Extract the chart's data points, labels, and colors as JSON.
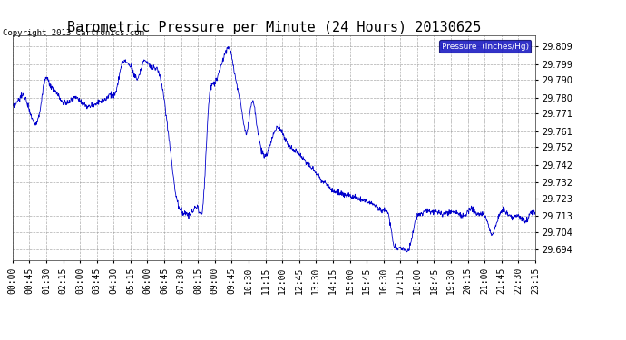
{
  "title": "Barometric Pressure per Minute (24 Hours) 20130625",
  "copyright": "Copyright 2013 Cartronics.com",
  "legend_label": "Pressure  (Inches/Hg)",
  "legend_bg": "#0000bb",
  "legend_text_color": "#ffffff",
  "line_color": "#0000cc",
  "bg_color": "#ffffff",
  "plot_bg_color": "#ffffff",
  "grid_color": "#999999",
  "yticks": [
    29.694,
    29.704,
    29.713,
    29.723,
    29.732,
    29.742,
    29.752,
    29.761,
    29.771,
    29.78,
    29.79,
    29.799,
    29.809
  ],
  "ylim": [
    29.688,
    29.815
  ],
  "xtick_labels": [
    "00:00",
    "00:45",
    "01:30",
    "02:15",
    "03:00",
    "03:45",
    "04:30",
    "05:15",
    "06:00",
    "06:45",
    "07:30",
    "08:15",
    "09:00",
    "09:45",
    "10:30",
    "11:15",
    "12:00",
    "12:45",
    "13:30",
    "14:15",
    "15:00",
    "15:45",
    "16:30",
    "17:15",
    "18:00",
    "18:45",
    "19:30",
    "20:15",
    "21:00",
    "21:45",
    "22:30",
    "23:15"
  ],
  "title_fontsize": 11,
  "axis_fontsize": 7,
  "copyright_fontsize": 6.5,
  "ctrl_t": [
    0,
    0.25,
    0.5,
    0.75,
    1.0,
    1.25,
    1.5,
    1.75,
    2.0,
    2.25,
    2.5,
    2.75,
    3.0,
    3.25,
    3.5,
    3.75,
    4.0,
    4.25,
    4.5,
    4.75,
    5.0,
    5.25,
    5.5,
    5.75,
    6.0,
    6.25,
    6.5,
    6.75,
    7.0,
    7.25,
    7.5,
    7.75,
    8.0,
    8.25,
    8.5,
    8.75,
    9.0,
    9.25,
    9.5,
    9.75,
    10.0,
    10.25,
    10.5,
    10.75,
    11.0,
    11.25,
    11.5,
    11.75,
    12.0,
    12.25,
    12.5,
    12.75,
    13.0,
    13.25,
    13.5,
    13.75,
    14.0,
    14.25,
    14.5,
    14.75,
    15.0,
    15.25,
    15.5,
    15.75,
    16.0,
    16.25,
    16.5,
    16.75,
    17.0,
    17.25,
    17.5,
    17.75,
    18.0,
    18.25,
    18.5,
    18.75,
    19.0,
    19.25,
    19.5,
    19.75,
    20.0,
    20.25,
    20.5,
    20.75,
    21.0,
    21.25,
    21.5,
    21.75,
    22.0,
    22.25,
    22.5,
    22.75,
    23.0,
    23.25,
    23.5,
    23.75,
    24.0
  ],
  "ctrl_p": [
    29.775,
    29.778,
    29.781,
    29.774,
    29.766,
    29.772,
    29.79,
    29.786,
    29.783,
    29.778,
    29.777,
    29.779,
    29.78,
    29.776,
    29.775,
    29.776,
    29.778,
    29.779,
    29.782,
    29.783,
    29.798,
    29.8,
    29.796,
    29.791,
    29.8,
    29.799,
    29.797,
    29.793,
    29.775,
    29.75,
    29.725,
    29.716,
    29.714,
    29.715,
    29.718,
    29.72,
    29.775,
    29.788,
    29.795,
    29.805,
    29.807,
    29.79,
    29.775,
    29.76,
    29.778,
    29.762,
    29.748,
    29.75,
    29.76,
    29.763,
    29.757,
    29.752,
    29.75,
    29.747,
    29.743,
    29.74,
    29.736,
    29.733,
    29.73,
    29.727,
    29.726,
    29.725,
    29.724,
    29.723,
    29.722,
    29.721,
    29.72,
    29.718,
    29.716,
    29.714,
    29.697,
    29.695,
    29.694,
    29.696,
    29.71,
    29.714,
    29.716,
    29.715,
    29.715,
    29.714,
    29.715,
    29.715,
    29.714,
    29.713,
    29.717,
    29.715,
    29.714,
    29.712,
    29.703,
    29.71,
    29.716,
    29.714,
    29.712,
    29.713,
    29.71,
    29.714,
    29.714
  ]
}
